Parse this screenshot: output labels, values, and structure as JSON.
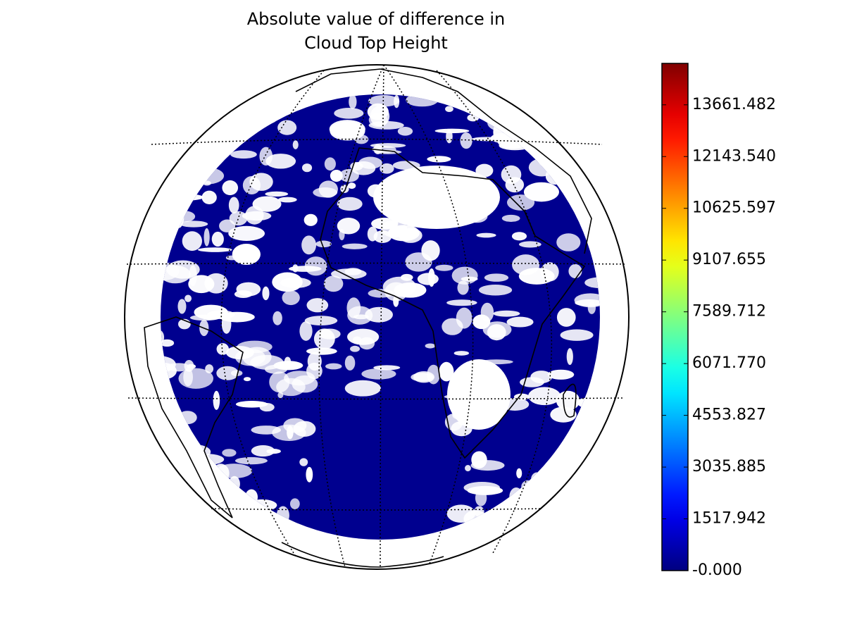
{
  "chart_data": {
    "type": "map",
    "title": [
      "Absolute value of difference in",
      "Cloud Top Height"
    ],
    "colorbar": {
      "colormap": "jet",
      "lim": [
        0,
        14876
      ],
      "ticks": [
        {
          "value": 0,
          "label": "-0.000"
        },
        1517.942,
        3035.885,
        4553.827,
        {
          "value": 6071.77,
          "label": "6071.770"
        },
        7589.712,
        9107.655,
        10625.597,
        {
          "value": 12143.54,
          "label": "12143.540"
        },
        13661.482
      ]
    }
  }
}
